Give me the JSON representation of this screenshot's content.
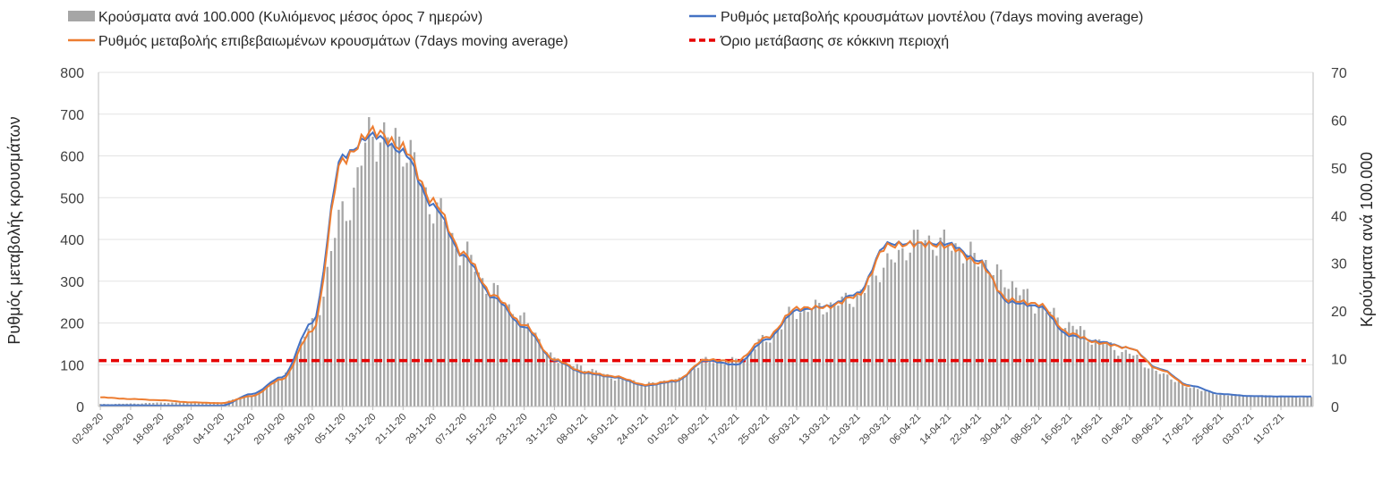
{
  "chart_data": {
    "type": "bar+line",
    "legend": {
      "bars": "Κρούσματα ανά 100.000 (Κυλιόμενος μέσος όρος 7 ημερών)",
      "model": "Ρυθμός μεταβολής κρουσμάτων μοντέλου (7days moving average)",
      "confirmed": "Ρυθμός μεταβολής επιβεβαιωμένων κρουσμάτων (7days moving average)",
      "threshold": "Όριο μετάβασης σε κόκκινη περιοχή"
    },
    "ylabel_left": "Ρυθμός μεταβολής κρουσμάτων",
    "ylabel_right": "Κρούσματα ανά 100.000",
    "ylim_left": [
      0,
      800
    ],
    "ylim_right": [
      0,
      70
    ],
    "yticks_left": [
      "0",
      "100",
      "200",
      "300",
      "400",
      "500",
      "600",
      "700",
      "800"
    ],
    "yticks_right": [
      "0",
      "10",
      "20",
      "30",
      "40",
      "50",
      "60",
      "70"
    ],
    "threshold_value": 110,
    "date_labels": [
      "02-09-20",
      "10-09-20",
      "18-09-20",
      "26-09-20",
      "04-10-20",
      "12-10-20",
      "20-10-20",
      "28-10-20",
      "05-11-20",
      "13-11-20",
      "21-11-20",
      "29-11-20",
      "07-12-20",
      "15-12-20",
      "23-12-20",
      "31-12-20",
      "08-01-21",
      "16-01-21",
      "24-01-21",
      "01-02-21",
      "09-02-21",
      "17-02-21",
      "25-02-21",
      "05-03-21",
      "13-03-21",
      "21-03-21",
      "29-03-21",
      "06-04-21",
      "14-04-21",
      "22-04-21",
      "30-04-21",
      "08-05-21",
      "16-05-21",
      "24-05-21",
      "01-06-21",
      "09-06-21",
      "17-06-21",
      "25-06-21",
      "03-07-21",
      "11-07-21"
    ],
    "anchor_day_index": [
      0,
      8,
      16,
      24,
      32,
      40,
      48,
      56,
      64,
      72,
      80,
      88,
      96,
      104,
      112,
      120,
      128,
      136,
      144,
      152,
      160,
      168,
      176,
      184,
      192,
      200,
      208,
      216,
      224,
      232,
      240,
      248,
      256,
      264,
      272,
      280,
      288,
      296,
      304,
      312,
      320
    ],
    "bars_per_100k_anchor": [
      0.5,
      0.6,
      0.8,
      0.8,
      0.9,
      2.5,
      6,
      17,
      40,
      57,
      55,
      42,
      32,
      24,
      18,
      10,
      8,
      6,
      4.8,
      5.5,
      9.5,
      9.5,
      14,
      20,
      21,
      23,
      30,
      35,
      34,
      31,
      26,
      21,
      17,
      13.5,
      11,
      7,
      4,
      2.5,
      2.3,
      2.1,
      2.0
    ],
    "model_rate_anchor": [
      3,
      3,
      2,
      2,
      2,
      30,
      70,
      200,
      600,
      650,
      610,
      480,
      360,
      260,
      190,
      110,
      80,
      70,
      50,
      60,
      110,
      100,
      160,
      230,
      240,
      270,
      390,
      390,
      390,
      350,
      250,
      240,
      170,
      155,
      140,
      90,
      50,
      30,
      25,
      24,
      24
    ],
    "confirmed_rate_anchor": [
      22,
      18,
      15,
      10,
      8,
      25,
      65,
      180,
      590,
      660,
      620,
      490,
      365,
      265,
      195,
      112,
      82,
      72,
      52,
      62,
      112,
      108,
      165,
      235,
      238,
      265,
      385,
      390,
      385,
      345,
      255,
      245,
      175,
      152,
      140,
      88,
      48,
      null,
      null,
      null,
      null
    ]
  }
}
